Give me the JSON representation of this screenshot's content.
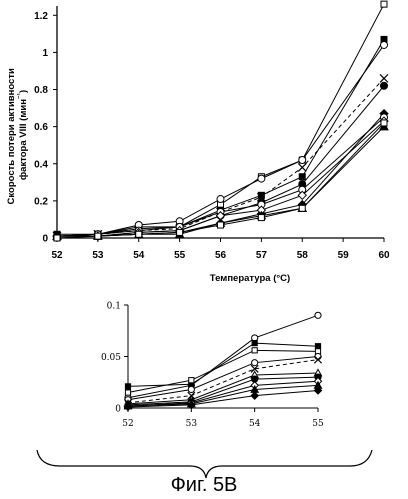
{
  "figure_caption": "Фиг. 5B",
  "chart_data": [
    {
      "type": "line",
      "ylabel": "Скорость потери активности фактора VIII (мин⁻¹)",
      "ylabel_lines": [
        "Скорость потери активности",
        "фактора VIII (мин",
        "⁻¹",
        ")"
      ],
      "xlabel": "Температура (°C)",
      "xlim": [
        52,
        60
      ],
      "ylim": [
        0,
        1.25
      ],
      "x_ticks": [
        "52",
        "53",
        "54",
        "55",
        "56",
        "57",
        "58",
        "59",
        "60"
      ],
      "y_ticks": [
        "0",
        "0.2",
        "0.4",
        "0.6",
        "0.8",
        "1",
        "1.2"
      ],
      "grid": false,
      "series": [
        {
          "marker": "square-open",
          "dashed": false,
          "x": [
            52,
            53,
            54,
            55,
            56,
            57,
            58,
            60
          ],
          "y": [
            0.01,
            0.02,
            0.05,
            0.06,
            0.18,
            0.33,
            0.42,
            1.26
          ]
        },
        {
          "marker": "square-filled",
          "dashed": false,
          "x": [
            52,
            53,
            54,
            55,
            56,
            57,
            58,
            60
          ],
          "y": [
            0.02,
            0.02,
            0.06,
            0.06,
            0.15,
            0.23,
            0.33,
            1.07
          ]
        },
        {
          "marker": "circle-open",
          "dashed": false,
          "x": [
            52,
            53,
            54,
            55,
            56,
            57,
            58,
            60
          ],
          "y": [
            0.01,
            0.02,
            0.07,
            0.09,
            0.21,
            0.32,
            0.42,
            1.04
          ]
        },
        {
          "marker": "cross",
          "dashed": true,
          "x": [
            52,
            53,
            54,
            55,
            56,
            57,
            58,
            60
          ],
          "y": [
            0.01,
            0.02,
            0.04,
            0.05,
            0.14,
            0.22,
            0.38,
            0.86
          ]
        },
        {
          "marker": "circle-filled",
          "dashed": false,
          "x": [
            52,
            53,
            54,
            55,
            56,
            57,
            58,
            60
          ],
          "y": [
            0.01,
            0.01,
            0.03,
            0.04,
            0.12,
            0.19,
            0.29,
            0.82
          ]
        },
        {
          "marker": "diamond-filled",
          "dashed": false,
          "x": [
            52,
            53,
            54,
            55,
            56,
            57,
            58,
            60
          ],
          "y": [
            0.01,
            0.01,
            0.02,
            0.03,
            0.08,
            0.13,
            0.18,
            0.67
          ]
        },
        {
          "marker": "circle-open",
          "dashed": false,
          "x": [
            52,
            53,
            54,
            55,
            56,
            57,
            58,
            60
          ],
          "y": [
            0.01,
            0.02,
            0.04,
            0.06,
            0.14,
            0.18,
            0.26,
            0.65
          ]
        },
        {
          "marker": "diamond-open",
          "dashed": false,
          "x": [
            52,
            53,
            54,
            55,
            56,
            57,
            58,
            60
          ],
          "y": [
            0.01,
            0.01,
            0.03,
            0.04,
            0.12,
            0.15,
            0.23,
            0.63
          ]
        },
        {
          "marker": "triangle-filled",
          "dashed": false,
          "x": [
            52,
            53,
            54,
            55,
            56,
            57,
            58,
            60
          ],
          "y": [
            0.01,
            0.01,
            0.02,
            0.02,
            0.08,
            0.12,
            0.16,
            0.6
          ]
        },
        {
          "marker": "square-open",
          "dashed": false,
          "x": [
            52,
            53,
            54,
            55,
            56,
            57,
            58,
            60
          ],
          "y": [
            0.0,
            0.01,
            0.02,
            0.03,
            0.07,
            0.11,
            0.16,
            0.62
          ]
        }
      ]
    },
    {
      "type": "line",
      "xlim": [
        52,
        55
      ],
      "ylim": [
        0,
        0.1
      ],
      "x_ticks": [
        "52",
        "53",
        "54",
        "55"
      ],
      "y_ticks": [
        "0",
        "0.05",
        "0.1"
      ],
      "y_tick_values": [
        0,
        0.05,
        0.1
      ],
      "grid": false,
      "series": [
        {
          "marker": "circle-open",
          "dashed": false,
          "x": [
            52,
            53,
            54,
            55
          ],
          "y": [
            0.01,
            0.022,
            0.068,
            0.09
          ]
        },
        {
          "marker": "square-filled",
          "dashed": false,
          "x": [
            52,
            53,
            54,
            55
          ],
          "y": [
            0.021,
            0.023,
            0.063,
            0.06
          ]
        },
        {
          "marker": "square-open",
          "dashed": false,
          "x": [
            52,
            53,
            54,
            55
          ],
          "y": [
            0.015,
            0.027,
            0.056,
            0.055
          ]
        },
        {
          "marker": "circle-open",
          "dashed": false,
          "x": [
            52,
            53,
            54,
            55
          ],
          "y": [
            0.008,
            0.018,
            0.044,
            0.05
          ]
        },
        {
          "marker": "cross",
          "dashed": true,
          "x": [
            52,
            53,
            54,
            55
          ],
          "y": [
            0.005,
            0.012,
            0.038,
            0.047
          ]
        },
        {
          "marker": "triangle-open",
          "dashed": false,
          "x": [
            52,
            53,
            54,
            55
          ],
          "y": [
            0.004,
            0.008,
            0.032,
            0.034
          ]
        },
        {
          "marker": "circle-filled",
          "dashed": false,
          "x": [
            52,
            53,
            54,
            55
          ],
          "y": [
            0.003,
            0.006,
            0.028,
            0.03
          ]
        },
        {
          "marker": "diamond-open",
          "dashed": false,
          "x": [
            52,
            53,
            54,
            55
          ],
          "y": [
            0.002,
            0.005,
            0.022,
            0.026
          ]
        },
        {
          "marker": "triangle-filled",
          "dashed": false,
          "x": [
            52,
            53,
            54,
            55
          ],
          "y": [
            0.002,
            0.004,
            0.018,
            0.022
          ]
        },
        {
          "marker": "diamond-filled",
          "dashed": false,
          "x": [
            52,
            53,
            54,
            55
          ],
          "y": [
            0.001,
            0.003,
            0.012,
            0.017
          ]
        }
      ]
    }
  ]
}
